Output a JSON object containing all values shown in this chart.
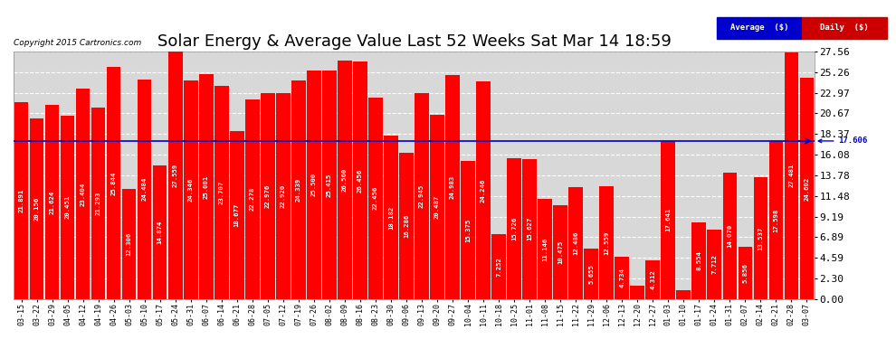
{
  "title": "Solar Energy & Average Value Last 52 Weeks Sat Mar 14 18:59",
  "copyright": "Copyright 2015 Cartronics.com",
  "data": [
    {
      "date": "03-15",
      "value": 21.891
    },
    {
      "date": "03-22",
      "value": 20.156
    },
    {
      "date": "03-29",
      "value": 21.624
    },
    {
      "date": "04-05",
      "value": 20.451
    },
    {
      "date": "04-12",
      "value": 23.404
    },
    {
      "date": "04-19",
      "value": 21.293
    },
    {
      "date": "04-26",
      "value": 25.844
    },
    {
      "date": "05-03",
      "value": 12.306
    },
    {
      "date": "05-10",
      "value": 24.484
    },
    {
      "date": "05-17",
      "value": 14.874
    },
    {
      "date": "05-24",
      "value": 27.559
    },
    {
      "date": "05-31",
      "value": 24.346
    },
    {
      "date": "06-07",
      "value": 25.001
    },
    {
      "date": "06-14",
      "value": 23.707
    },
    {
      "date": "06-21",
      "value": 18.677
    },
    {
      "date": "06-28",
      "value": 22.278
    },
    {
      "date": "07-05",
      "value": 22.976
    },
    {
      "date": "07-12",
      "value": 22.92
    },
    {
      "date": "07-19",
      "value": 24.339
    },
    {
      "date": "07-26",
      "value": 25.5
    },
    {
      "date": "08-02",
      "value": 25.415
    },
    {
      "date": "08-09",
      "value": 26.56
    },
    {
      "date": "08-16",
      "value": 26.456
    },
    {
      "date": "08-23",
      "value": 22.456
    },
    {
      "date": "08-30",
      "value": 18.182
    },
    {
      "date": "09-06",
      "value": 16.286
    },
    {
      "date": "09-13",
      "value": 22.945
    },
    {
      "date": "09-20",
      "value": 20.487
    },
    {
      "date": "09-27",
      "value": 24.983
    },
    {
      "date": "10-04",
      "value": 15.375
    },
    {
      "date": "10-11",
      "value": 24.246
    },
    {
      "date": "10-18",
      "value": 7.252
    },
    {
      "date": "10-25",
      "value": 15.726
    },
    {
      "date": "11-01",
      "value": 15.627
    },
    {
      "date": "11-08",
      "value": 11.146
    },
    {
      "date": "11-15",
      "value": 10.475
    },
    {
      "date": "11-22",
      "value": 12.486
    },
    {
      "date": "11-29",
      "value": 5.655
    },
    {
      "date": "12-06",
      "value": 12.559
    },
    {
      "date": "12-13",
      "value": 4.734
    },
    {
      "date": "12-20",
      "value": 1.529
    },
    {
      "date": "12-27",
      "value": 4.312
    },
    {
      "date": "01-03",
      "value": 17.641
    },
    {
      "date": "01-10",
      "value": 1.006
    },
    {
      "date": "01-17",
      "value": 8.554
    },
    {
      "date": "01-24",
      "value": 7.712
    },
    {
      "date": "01-31",
      "value": 14.07
    },
    {
      "date": "02-07",
      "value": 5.856
    },
    {
      "date": "02-14",
      "value": 13.537
    },
    {
      "date": "02-21",
      "value": 17.598
    },
    {
      "date": "02-28",
      "value": 27.481
    },
    {
      "date": "03-07",
      "value": 24.602
    }
  ],
  "average_line": 17.606,
  "yticks": [
    0.0,
    2.3,
    4.59,
    6.89,
    9.19,
    11.48,
    13.78,
    16.08,
    18.37,
    20.67,
    22.97,
    25.26,
    27.56
  ],
  "ymax": 27.56,
  "bar_color": "#ff0000",
  "avg_line_color": "#0000cc",
  "bg_color": "#ffffff",
  "plot_bg_color": "#d8d8d8",
  "grid_color": "#ffffff",
  "title_fontsize": 13,
  "legend_avg_color": "#0000cc",
  "legend_daily_color": "#cc0000",
  "avg_label": "Average  ($)",
  "daily_label": "Daily  ($)"
}
